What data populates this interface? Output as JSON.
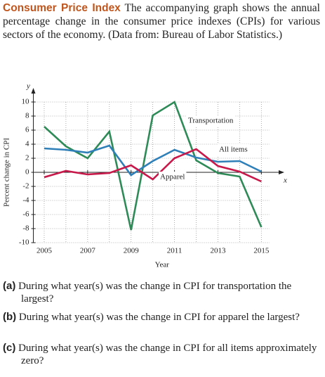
{
  "header": {
    "title": "Consumer Price Index",
    "text": "The accompanying graph shows the annual percentage change in the consumer price indexes (CPIs) for various sectors of the economy. (Data from: Bureau of Labor Statistics.)"
  },
  "chart_data": {
    "type": "line",
    "x_label": "Year",
    "y_label": "Percent change in CPI",
    "x_axis_name": "x",
    "y_axis_name": "y",
    "x": [
      2005,
      2006,
      2007,
      2008,
      2009,
      2010,
      2011,
      2012,
      2013,
      2014,
      2015
    ],
    "series": [
      {
        "name": "Transportation",
        "color": "#2e8b57",
        "values": [
          6.5,
          3.7,
          2.0,
          5.8,
          -8.2,
          8.1,
          10,
          1.7,
          -0.1,
          -0.6,
          -7.8
        ]
      },
      {
        "name": "All items",
        "color": "#2f7fb8",
        "values": [
          3.4,
          3.2,
          2.8,
          3.8,
          -0.4,
          1.6,
          3.2,
          2.1,
          1.5,
          1.6,
          0.1
        ]
      },
      {
        "name": "Apparel",
        "color": "#c8194b",
        "values": [
          -0.7,
          0.2,
          -0.3,
          -0.1,
          1.0,
          -1.0,
          2.0,
          3.3,
          0.9,
          0.1,
          -1.3
        ]
      }
    ],
    "xlim": [
      2004.5,
      2015.7
    ],
    "xticks": [
      2005,
      2007,
      2009,
      2011,
      2013,
      2015
    ],
    "ylim": [
      -10,
      10
    ],
    "yticks": [
      -10,
      -8,
      -6,
      -4,
      -2,
      0,
      2,
      4,
      6,
      8,
      10
    ],
    "grid": true
  },
  "questions": [
    {
      "label": "(a)",
      "text": "During what year(s) was the change in CPI for transportation the largest?"
    },
    {
      "label": "(b)",
      "text": "During what year(s) was the change in CPI for apparel the largest?"
    },
    {
      "label": "(c)",
      "text": "During what year(s) was the change in CPI for all items approximately zero?"
    }
  ]
}
